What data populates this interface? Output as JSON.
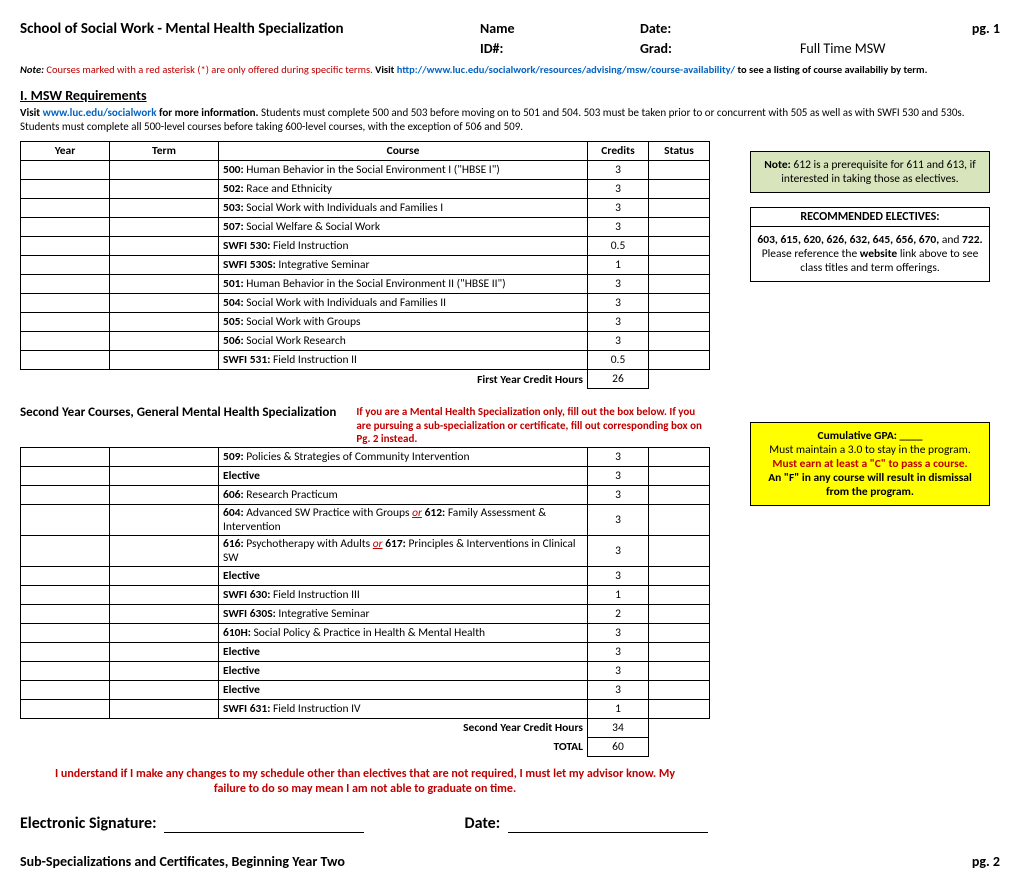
{
  "header": {
    "title": "School of Social Work - Mental Health Specialization",
    "name_label": "Name",
    "date_label": "Date:",
    "pg": "pg. 1",
    "id_label": "ID#:",
    "grad_label": "Grad:",
    "grad_value": "Full Time MSW"
  },
  "note": {
    "label": "Note:",
    "red": "Courses marked with a red asterisk (*) are only offered during specific terms.",
    "visit": "Visit",
    "url": "http://www.luc.edu/socialwork/resources/advising/msw/course-availability/",
    "tail": "to see a listing of course availabiliy by term."
  },
  "section1": {
    "heading": "I. MSW Requirements",
    "body_visit": "Visit",
    "body_url": "www.luc.edu/socialwork",
    "body_more": "for more information.",
    "body_tail": "Students must complete 500 and 503 before moving on to 501 and 504. 503 must be taken prior to or concurrent with 505 as well as with SWFI 530 and 530s.  Students must complete all 500-level courses before taking 600-level courses, with the exception of 506 and 509."
  },
  "table1": {
    "headers": {
      "year": "Year",
      "term": "Term",
      "course": "Course",
      "credits": "Credits",
      "status": "Status"
    },
    "rows": [
      {
        "bold": "500:",
        "text": "Human Behavior in the Social Environment I (\"HBSE I\")",
        "credits": "3"
      },
      {
        "bold": "502:",
        "text": "Race and Ethnicity",
        "credits": "3"
      },
      {
        "bold": "503:",
        "text": "Social Work with Individuals and Families I",
        "credits": "3"
      },
      {
        "bold": "507:",
        "text": "Social Welfare & Social Work",
        "credits": "3"
      },
      {
        "bold": "SWFI 530:",
        "text": "Field Instruction",
        "credits": "0.5"
      },
      {
        "bold": "SWFI 530S:",
        "text": "Integrative Seminar",
        "credits": "1"
      },
      {
        "bold": "501:",
        "text": "Human Behavior in the Social Environment II (\"HBSE II\")",
        "credits": "3"
      },
      {
        "bold": "504:",
        "text": "Social Work with Individuals and Families II",
        "credits": "3"
      },
      {
        "bold": "505:",
        "text": "Social Work with Groups",
        "credits": "3"
      },
      {
        "bold": "506:",
        "text": "Social Work Research",
        "credits": "3"
      },
      {
        "bold": "SWFI 531:",
        "text": "Field Instruction II",
        "credits": "0.5"
      }
    ],
    "total_label": "First Year Credit Hours",
    "total_value": "26"
  },
  "section2": {
    "heading": "Second Year Courses, General Mental Health Specialization",
    "red": "If you are a Mental Health Specialization only, fill out the box below. If you are pursuing a sub-specialization or certificate, fill out corresponding box on Pg. 2 instead."
  },
  "table2": {
    "rows": [
      {
        "bold": "509:",
        "text": "Policies & Strategies of Community Intervention",
        "credits": "3"
      },
      {
        "bold": "Elective",
        "text": "",
        "credits": "3"
      },
      {
        "bold": "606:",
        "text": "Research Practicum",
        "credits": "3"
      },
      {
        "bold": "604:",
        "text": "Advanced SW Practice with Groups",
        "or": true,
        "alt": "612:",
        "alt_text": "Family Assessment & Intervention",
        "credits": "3"
      },
      {
        "bold": "616:",
        "text": "Psychotherapy with Adults",
        "or": true,
        "alt": "617:",
        "alt_text": "Principles & Interventions in Clinical SW",
        "credits": "3"
      },
      {
        "bold": "Elective",
        "text": "",
        "credits": "3"
      },
      {
        "bold": "SWFI 630:",
        "text": "Field Instruction III",
        "credits": "1"
      },
      {
        "bold": "SWFI 630S:",
        "text": "Integrative Seminar",
        "credits": "2"
      },
      {
        "bold": "610H:",
        "text": "Social Policy & Practice in Health & Mental Health",
        "credits": "3"
      },
      {
        "bold": "Elective",
        "text": "",
        "credits": "3"
      },
      {
        "bold": "Elective",
        "text": "",
        "credits": "3"
      },
      {
        "bold": "Elective",
        "text": "",
        "credits": "3"
      },
      {
        "bold": "SWFI 631:",
        "text": "Field Instruction IV",
        "credits": "1"
      }
    ],
    "sub_label": "Second Year Credit Hours",
    "sub_value": "34",
    "total_label": "TOTAL",
    "total_value": "60"
  },
  "greenbox": {
    "bold": "Note:",
    "text": "612 is a prerequisite for 611 and 613, if interested in taking those as electives."
  },
  "electives": {
    "heading": "RECOMMENDED ELECTIVES:",
    "list": "603, 615, 620, 626, 632, 645, 656, 670,",
    "list_tail": "and",
    "list_last": "722.",
    "body1": "Please reference the",
    "body_bold": "website",
    "body2": "link above to see class titles and term offerings."
  },
  "yellowbox": {
    "l1": "Cumulative GPA: ____",
    "l2": "Must maintain a 3.0 to stay in the program.",
    "l3": "Must earn at least a \"C\" to pass a course.",
    "l4": "An \"F\" in any course will result in dismissal from the program."
  },
  "disclaimer": "I understand if I make any changes to my schedule other than electives that are not required, I must let my advisor know. My failure to do so may mean I am not able to graduate on time.",
  "signature": {
    "sig": "Electronic Signature:",
    "date": "Date:"
  },
  "footer": {
    "title": "Sub-Specializations and Certificates, Beginning Year Two",
    "pg": "pg. 2"
  }
}
